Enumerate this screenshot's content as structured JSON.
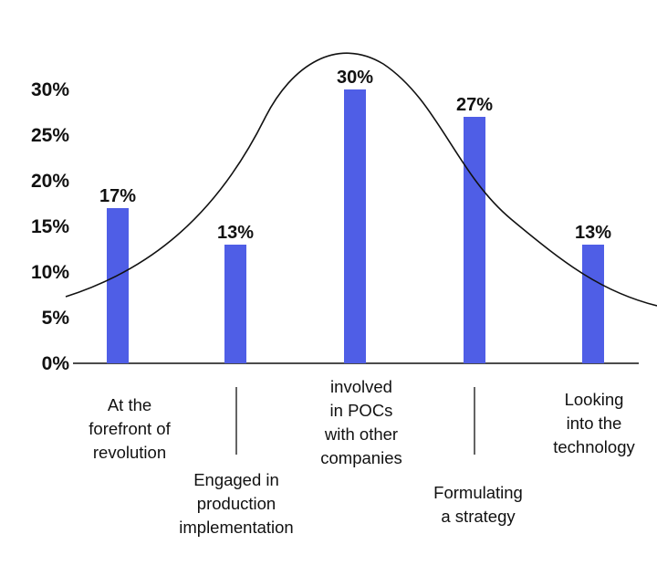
{
  "chart_data": {
    "type": "bar",
    "categories": [
      "At the\nforefront of\nrevolution",
      "Engaged in\nproduction\nimplementation",
      "involved\nin POCs\nwith other\ncompanies",
      "Formulating\na strategy",
      "Looking\ninto the\ntechnology"
    ],
    "values": [
      17,
      13,
      30,
      27,
      13
    ],
    "data_labels": [
      "17%",
      "13%",
      "30%",
      "27%",
      "13%"
    ],
    "y_ticks": [
      "0%",
      "5%",
      "10%",
      "15%",
      "20%",
      "25%",
      "30%"
    ],
    "ylim": [
      0,
      31
    ],
    "bar_color": "#4f5ee6",
    "overlay": "bell-curve",
    "grid": false,
    "legend": "none"
  }
}
